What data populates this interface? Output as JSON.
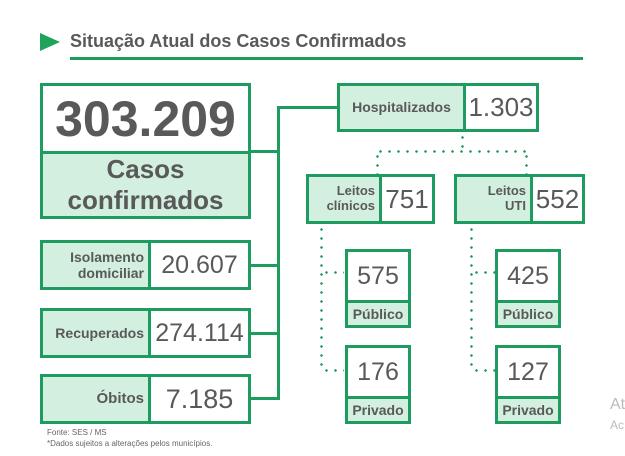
{
  "header": {
    "title": "Situação Atual dos Casos Confirmados",
    "icon": "play-triangle-icon"
  },
  "colors": {
    "accent": "#1e9b5e",
    "fill": "#d3efdf",
    "text": "#595959"
  },
  "total": {
    "value": "303.209",
    "label": "Casos confirmados"
  },
  "left": [
    {
      "label": "Isolamento domiciliar",
      "value": "20.607"
    },
    {
      "label": "Recuperados",
      "value": "274.114"
    },
    {
      "label": "Óbitos",
      "value": "7.185"
    }
  ],
  "hospital": {
    "label": "Hospitalizados",
    "value": "1.303"
  },
  "beds": [
    {
      "label": "Leitos clínicos",
      "value": "751",
      "public": "575",
      "private": "176"
    },
    {
      "label": "Leitos UTI",
      "value": "552",
      "public": "425",
      "private": "127"
    }
  ],
  "public_label": "Público",
  "private_label": "Privado",
  "footer": {
    "source": "Fonte: SES / MS",
    "note": "*Dados sujeitos a alterações pelos municípios."
  },
  "watermark": {
    "line1": "At",
    "line2": "Ac"
  }
}
